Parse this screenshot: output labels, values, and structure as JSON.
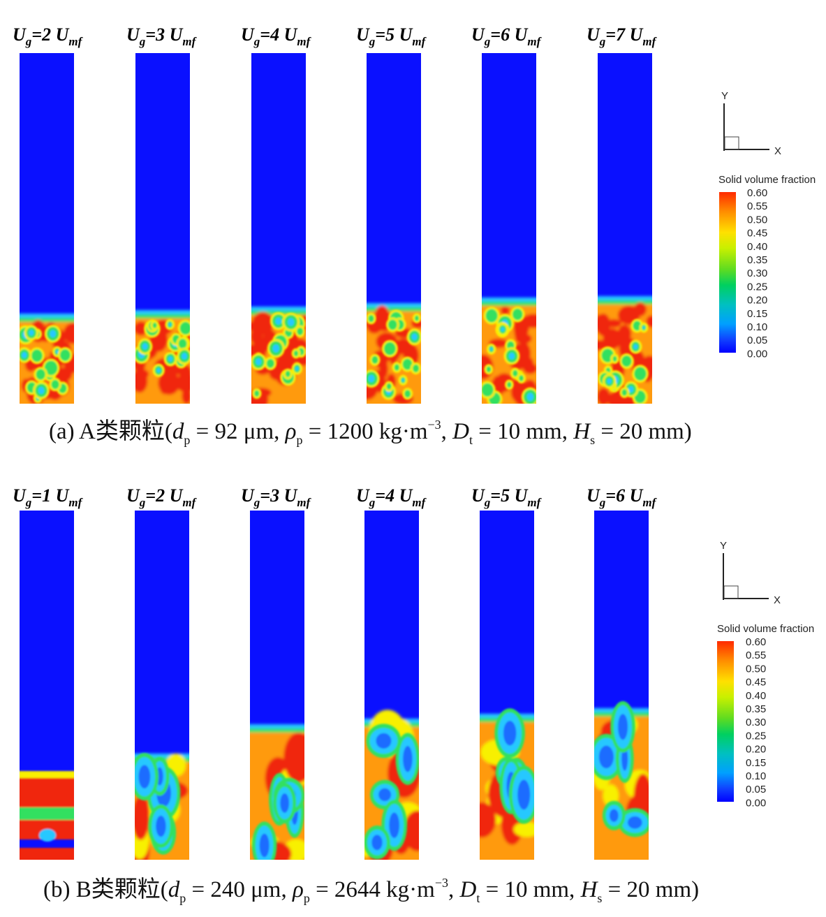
{
  "colorbar": {
    "title": "Solid volume fraction",
    "ticks": [
      "0.60",
      "0.55",
      "0.50",
      "0.45",
      "0.40",
      "0.35",
      "0.30",
      "0.25",
      "0.20",
      "0.15",
      "0.10",
      "0.05",
      "0.00"
    ],
    "colors": [
      "#ff2a00",
      "#ff8c00",
      "#ffe000",
      "#c8f000",
      "#60dc20",
      "#00d060",
      "#00c0c0",
      "#00a0ff",
      "#1040ff",
      "#0000ff"
    ]
  },
  "axes": {
    "y": "Y",
    "x": "X"
  },
  "colors": {
    "background_blue": "#0a10ff",
    "dense_red": "#f02810",
    "bubble_cyan": "#28c8ff",
    "orange": "#ff9a10",
    "yellow": "#f8f000",
    "green": "#30e060"
  },
  "panel_a": {
    "caption": {
      "prefix": "(a) A类颗粒(",
      "d": "d",
      "d_sub": "p",
      "d_val": " = 92 μm, ",
      "rho": "ρ",
      "rho_sub": "p",
      "rho_val": " = 1200 kg·m",
      "unit_sup": "−3",
      "sep": ", ",
      "D": "D",
      "D_sub": "t",
      "D_val": " = 10 mm, ",
      "H": "H",
      "H_sub": "s",
      "H_val": " = 20 mm)"
    },
    "labels": [
      {
        "U": "U",
        "g": "g",
        "eq": "=2 ",
        "U2": "U",
        "mf": "mf"
      },
      {
        "U": "U",
        "g": "g",
        "eq": "=3 ",
        "U2": "U",
        "mf": "mf"
      },
      {
        "U": "U",
        "g": "g",
        "eq": "=4 ",
        "U2": "U",
        "mf": "mf"
      },
      {
        "U": "U",
        "g": "g",
        "eq": "=5 ",
        "U2": "U",
        "mf": "mf"
      },
      {
        "U": "U",
        "g": "g",
        "eq": "=6 ",
        "U2": "U",
        "mf": "mf"
      },
      {
        "U": "U",
        "g": "g",
        "eq": "=7 ",
        "U2": "U",
        "mf": "mf"
      }
    ]
  },
  "panel_b": {
    "caption": {
      "prefix": "(b) B类颗粒(",
      "d": "d",
      "d_sub": "p",
      "d_val": " = 240 μm, ",
      "rho": "ρ",
      "rho_sub": "p",
      "rho_val": " = 2644 kg·m",
      "unit_sup": "−3",
      "sep": ", ",
      "D": "D",
      "D_sub": "t",
      "D_val": " = 10 mm, ",
      "H": "H",
      "H_sub": "s",
      "H_val": " = 20 mm)"
    },
    "labels": [
      {
        "U": "U",
        "g": "g",
        "eq": "=1 ",
        "U2": "U",
        "mf": "mf"
      },
      {
        "U": "U",
        "g": "g",
        "eq": "=2 ",
        "U2": "U",
        "mf": "mf"
      },
      {
        "U": "U",
        "g": "g",
        "eq": "=3 ",
        "U2": "U",
        "mf": "mf"
      },
      {
        "U": "U",
        "g": "g",
        "eq": "=4 ",
        "U2": "U",
        "mf": "mf"
      },
      {
        "U": "U",
        "g": "g",
        "eq": "=5 ",
        "U2": "U",
        "mf": "mf"
      },
      {
        "U": "U",
        "g": "g",
        "eq": "=6 ",
        "U2": "U",
        "mf": "mf"
      }
    ]
  }
}
